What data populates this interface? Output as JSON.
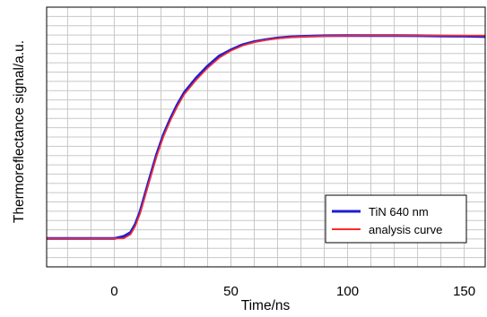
{
  "chart_data": {
    "type": "line",
    "xlabel": "Time/ns",
    "ylabel": "Thermoreflectance signal/a.u.",
    "xlim": [
      -29,
      159
    ],
    "ylim": [
      -0.14,
      1.14
    ],
    "xticks": [
      0,
      50,
      100,
      150
    ],
    "x_minor_step": 10,
    "y_gridlines": 28,
    "grid": true,
    "legend_position": "lower-right",
    "series": [
      {
        "name": "TiN 640 nm",
        "color": "#1d1dd6",
        "x": [
          -29,
          -20,
          -10,
          0,
          4,
          7,
          9,
          11,
          13,
          15,
          18,
          21,
          24,
          27,
          30,
          35,
          40,
          45,
          50,
          55,
          60,
          65,
          70,
          75,
          80,
          90,
          100,
          110,
          120,
          130,
          140,
          150,
          159
        ],
        "y": [
          0.0,
          0.0,
          0.0,
          0.0,
          0.01,
          0.03,
          0.07,
          0.13,
          0.21,
          0.29,
          0.41,
          0.51,
          0.59,
          0.66,
          0.72,
          0.79,
          0.85,
          0.9,
          0.93,
          0.955,
          0.97,
          0.98,
          0.988,
          0.993,
          0.996,
          0.999,
          1.0,
          1.0,
          1.0,
          0.999,
          0.998,
          0.997,
          0.995
        ]
      },
      {
        "name": "analysis curve",
        "color": "#ff2a2a",
        "x": [
          -29,
          -20,
          -10,
          0,
          4,
          7,
          9,
          11,
          13,
          15,
          18,
          21,
          24,
          27,
          30,
          35,
          40,
          45,
          50,
          55,
          60,
          65,
          70,
          75,
          80,
          90,
          100,
          110,
          120,
          130,
          140,
          150,
          159
        ],
        "y": [
          0.0,
          0.0,
          0.0,
          0.0,
          0.0,
          0.02,
          0.06,
          0.12,
          0.2,
          0.28,
          0.4,
          0.5,
          0.58,
          0.65,
          0.71,
          0.78,
          0.84,
          0.89,
          0.925,
          0.95,
          0.967,
          0.978,
          0.986,
          0.991,
          0.995,
          0.998,
          0.999,
          1.0,
          1.0,
          1.0,
          1.0,
          1.0,
          1.0
        ]
      }
    ]
  }
}
